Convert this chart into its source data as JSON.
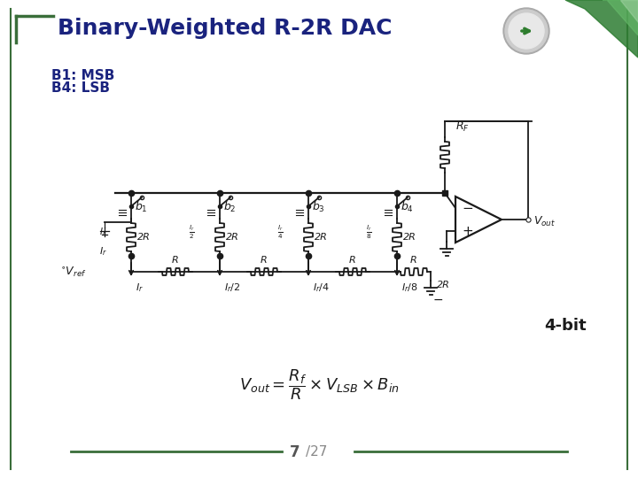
{
  "title": "Binary-Weighted R-2R DAC",
  "title_color": "#1a237e",
  "subtitle_line1": "B1: MSB",
  "subtitle_line2": "B4: LSB",
  "subtitle_color": "#1a237e",
  "slide_bg": "#ffffff",
  "border_color": "#3a6e3a",
  "footer_line_color": "#3a6e3a",
  "footer_text_7": "7",
  "footer_text_27": "/27",
  "footer_text_color": "#888888",
  "label_4bit": "4-bit",
  "circuit_color": "#1a1a1a",
  "title_fontsize": 18,
  "subtitle_fontsize": 11,
  "circuit_lw": 1.3
}
